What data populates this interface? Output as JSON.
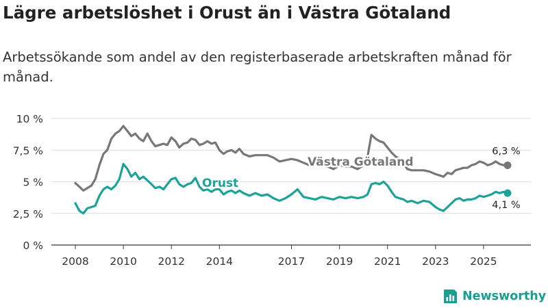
{
  "title": "Lägre arbetslöshet i Orust än i Västra Götaland",
  "subtitle": "Arbetssökande som andel av den registerbaserade arbetskraften månad för månad.",
  "brand": {
    "name": "Newsworthy",
    "icon": "bar-chart-icon",
    "color": "#1a9e8f"
  },
  "colors": {
    "vastra": "#77777b",
    "orust": "#1aa396",
    "grid": "#dcdcdc",
    "axis": "#333333"
  },
  "chart_data": {
    "type": "line",
    "title": "Lägre arbetslöshet i Orust än i Västra Götaland",
    "xlabel": "",
    "ylabel": "",
    "xlim": [
      2008,
      2026.2
    ],
    "ylim": [
      0,
      10
    ],
    "y_ticks": [
      0,
      2.5,
      5,
      7.5,
      10
    ],
    "y_tick_labels": [
      "0 %",
      "2,5 %",
      "5 %",
      "7,5 %",
      "10 %"
    ],
    "x_ticks": [
      2008,
      2010,
      2012,
      2014,
      2017,
      2019,
      2021,
      2023,
      2025
    ],
    "x_tick_labels": [
      "2008",
      "2010",
      "2012",
      "2014",
      "2017",
      "2019",
      "2021",
      "2023",
      "2025"
    ],
    "grid": true,
    "series": [
      {
        "name": "Västra Götaland",
        "label": "Västra Götaland",
        "color": "#77777b",
        "end_label": "6,3 %",
        "x": [
          2008.0,
          2008.17,
          2008.33,
          2008.5,
          2008.67,
          2008.83,
          2009.0,
          2009.17,
          2009.33,
          2009.5,
          2009.67,
          2009.83,
          2010.0,
          2010.17,
          2010.33,
          2010.5,
          2010.67,
          2010.83,
          2011.0,
          2011.17,
          2011.33,
          2011.5,
          2011.67,
          2011.83,
          2012.0,
          2012.17,
          2012.33,
          2012.5,
          2012.67,
          2012.83,
          2013.0,
          2013.17,
          2013.33,
          2013.5,
          2013.67,
          2013.83,
          2014.0,
          2014.17,
          2014.33,
          2014.5,
          2014.67,
          2014.83,
          2015.0,
          2015.25,
          2015.5,
          2015.75,
          2016.0,
          2016.25,
          2016.5,
          2016.75,
          2017.0,
          2017.25,
          2017.5,
          2017.75,
          2018.0,
          2018.25,
          2018.5,
          2018.75,
          2019.0,
          2019.25,
          2019.5,
          2019.75,
          2020.0,
          2020.17,
          2020.33,
          2020.5,
          2020.67,
          2020.83,
          2021.0,
          2021.17,
          2021.33,
          2021.5,
          2021.67,
          2021.83,
          2022.0,
          2022.25,
          2022.5,
          2022.75,
          2023.0,
          2023.17,
          2023.33,
          2023.5,
          2023.67,
          2023.83,
          2024.0,
          2024.17,
          2024.33,
          2024.5,
          2024.67,
          2024.83,
          2025.0,
          2025.17,
          2025.33,
          2025.5,
          2025.67,
          2025.83,
          2026.0
        ],
        "values": [
          4.9,
          4.6,
          4.3,
          4.5,
          4.7,
          5.2,
          6.3,
          7.2,
          7.5,
          8.4,
          8.8,
          9.0,
          9.4,
          9.0,
          8.6,
          8.8,
          8.4,
          8.2,
          8.8,
          8.2,
          7.8,
          7.9,
          8.0,
          7.9,
          8.5,
          8.2,
          7.7,
          8.0,
          8.1,
          8.4,
          8.3,
          7.9,
          8.0,
          8.2,
          8.0,
          8.1,
          7.5,
          7.2,
          7.4,
          7.5,
          7.3,
          7.6,
          7.2,
          7.0,
          7.1,
          7.1,
          7.1,
          6.9,
          6.6,
          6.7,
          6.8,
          6.7,
          6.5,
          6.3,
          6.4,
          6.3,
          6.2,
          6.0,
          6.3,
          6.2,
          6.2,
          6.0,
          6.3,
          7.0,
          8.7,
          8.4,
          8.2,
          8.1,
          7.7,
          7.3,
          7.0,
          6.8,
          6.4,
          6.0,
          5.9,
          5.9,
          5.9,
          5.8,
          5.6,
          5.5,
          5.4,
          5.7,
          5.6,
          5.9,
          6.0,
          6.1,
          6.1,
          6.3,
          6.4,
          6.6,
          6.5,
          6.3,
          6.4,
          6.6,
          6.4,
          6.3,
          6.3
        ]
      },
      {
        "name": "Orust",
        "label": "Orust",
        "color": "#1aa396",
        "end_label": "4,1 %",
        "x": [
          2008.0,
          2008.17,
          2008.33,
          2008.5,
          2008.67,
          2008.83,
          2009.0,
          2009.17,
          2009.33,
          2009.5,
          2009.67,
          2009.83,
          2010.0,
          2010.17,
          2010.33,
          2010.5,
          2010.67,
          2010.83,
          2011.0,
          2011.17,
          2011.33,
          2011.5,
          2011.67,
          2011.83,
          2012.0,
          2012.17,
          2012.33,
          2012.5,
          2012.67,
          2012.83,
          2013.0,
          2013.17,
          2013.33,
          2013.5,
          2013.67,
          2013.83,
          2014.0,
          2014.17,
          2014.33,
          2014.5,
          2014.67,
          2014.83,
          2015.0,
          2015.25,
          2015.5,
          2015.75,
          2016.0,
          2016.25,
          2016.5,
          2016.75,
          2017.0,
          2017.25,
          2017.5,
          2017.75,
          2018.0,
          2018.25,
          2018.5,
          2018.75,
          2019.0,
          2019.25,
          2019.5,
          2019.75,
          2020.0,
          2020.17,
          2020.33,
          2020.5,
          2020.67,
          2020.83,
          2021.0,
          2021.17,
          2021.33,
          2021.5,
          2021.67,
          2021.83,
          2022.0,
          2022.25,
          2022.5,
          2022.75,
          2023.0,
          2023.17,
          2023.33,
          2023.5,
          2023.67,
          2023.83,
          2024.0,
          2024.17,
          2024.33,
          2024.5,
          2024.67,
          2024.83,
          2025.0,
          2025.17,
          2025.33,
          2025.5,
          2025.67,
          2025.83,
          2026.0
        ],
        "values": [
          3.3,
          2.7,
          2.5,
          2.9,
          3.0,
          3.1,
          3.9,
          4.4,
          4.6,
          4.4,
          4.7,
          5.2,
          6.4,
          6.0,
          5.4,
          5.7,
          5.2,
          5.4,
          5.1,
          4.8,
          4.5,
          4.6,
          4.4,
          4.8,
          5.2,
          5.3,
          4.8,
          4.6,
          4.8,
          4.9,
          5.3,
          4.6,
          4.3,
          4.4,
          4.2,
          4.4,
          4.4,
          4.0,
          4.2,
          4.3,
          4.1,
          4.3,
          4.1,
          3.9,
          4.1,
          3.9,
          4.0,
          3.7,
          3.5,
          3.7,
          4.0,
          4.4,
          3.8,
          3.7,
          3.6,
          3.8,
          3.7,
          3.6,
          3.8,
          3.7,
          3.8,
          3.7,
          3.8,
          4.0,
          4.8,
          4.9,
          4.8,
          5.0,
          4.7,
          4.2,
          3.8,
          3.7,
          3.6,
          3.4,
          3.5,
          3.3,
          3.5,
          3.4,
          3.0,
          2.8,
          2.7,
          3.0,
          3.3,
          3.6,
          3.7,
          3.5,
          3.6,
          3.6,
          3.7,
          3.9,
          3.8,
          3.9,
          4.0,
          4.2,
          4.1,
          4.2,
          4.1
        ]
      }
    ]
  }
}
